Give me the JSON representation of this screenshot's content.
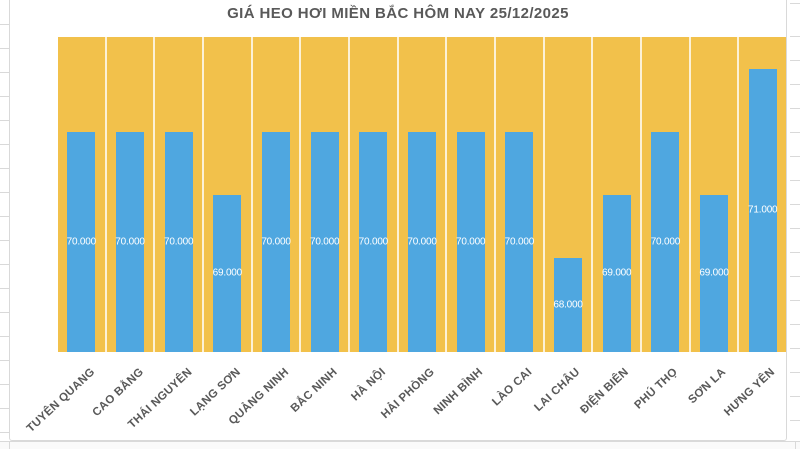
{
  "spreadsheet": {
    "gridline_color": "#d9d9d9",
    "background_color": "#ffffff"
  },
  "chart_data": {
    "type": "bar",
    "title": "GIÁ HEO HƠI MIỀN BẮC HÔM NAY 25/12/2025",
    "categories": [
      "TUYÊN QUANG",
      "CAO BẰNG",
      "THÁI NGUYÊN",
      "LẠNG SƠN",
      "QUẢNG NINH",
      "BẮC NINH",
      "HÀ NỘI",
      "HẢI PHÒNG",
      "NINH BÌNH",
      "LÀO CAI",
      "LAI CHÂU",
      "ĐIỆN BIÊN",
      "PHÚ THỌ",
      "SƠN LA",
      "HƯNG YÊN"
    ],
    "values": [
      70000,
      70000,
      70000,
      69000,
      70000,
      70000,
      70000,
      70000,
      70000,
      70000,
      68000,
      69000,
      70000,
      69000,
      71000
    ],
    "data_labels": [
      "70.000",
      "70.000",
      "70.000",
      "69.000",
      "70.000",
      "70.000",
      "70.000",
      "70.000",
      "70.000",
      "70.000",
      "68.000",
      "69.000",
      "70.000",
      "69.000",
      "71.000"
    ],
    "xlabel": "",
    "ylabel": "",
    "ylim": [
      66500,
      71500
    ],
    "value_axis_visible": false,
    "legend": "none",
    "data_label_position": "inside-center",
    "grid": "white vertical separators between categories",
    "colors": {
      "bar": "#4FA7E0",
      "plot_background": "#F2C14B",
      "title_text": "#595959",
      "axis_label_text": "#595959",
      "data_label_text": "#ffffff",
      "chart_border": "#d9d9d9"
    }
  }
}
